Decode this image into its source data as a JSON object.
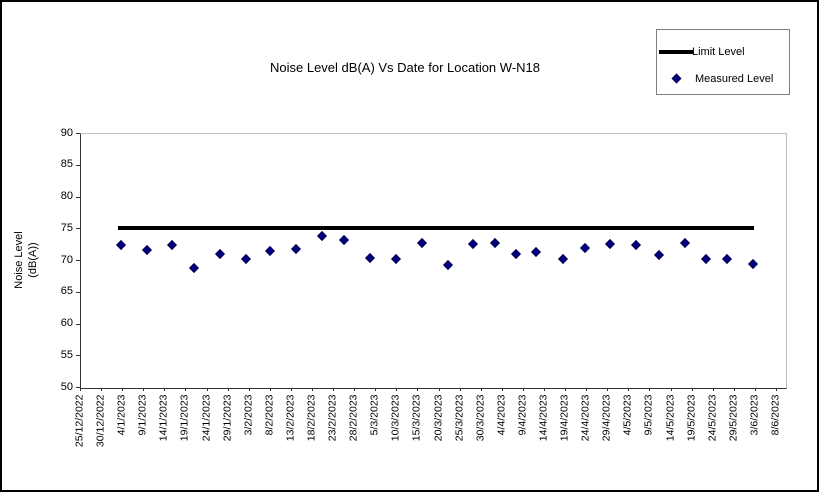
{
  "colors": {
    "background": "#ffffff",
    "canvas_border": "#000000",
    "axis": "#333333",
    "plot_border": "#c0c0c0",
    "limit_line": "#000000",
    "measured_point": "#000080",
    "legend_border": "#808080",
    "text": "#000000"
  },
  "chart_data": {
    "type": "scatter",
    "title": "Noise Level dB(A) Vs Date for Location W-N18",
    "grid": false,
    "y_axis": {
      "label_line1": "Noise Level",
      "label_line2": "(dB(A))",
      "min": 50,
      "max": 90,
      "tick_step": 5,
      "ticks": [
        90,
        85,
        80,
        75,
        70,
        65,
        60,
        55,
        50
      ]
    },
    "x_axis": {
      "tick_labels": [
        "25/12/2022",
        "30/12/2022",
        "4/1/2023",
        "9/1/2023",
        "14/1/2023",
        "19/1/2023",
        "24/1/2023",
        "29/1/2023",
        "3/2/2023",
        "8/2/2023",
        "13/2/2023",
        "18/2/2023",
        "23/2/2023",
        "28/2/2023",
        "5/3/2023",
        "10/3/2023",
        "15/3/2023",
        "20/3/2023",
        "25/3/2023",
        "30/3/2023",
        "4/4/2023",
        "9/4/2023",
        "14/4/2023",
        "19/4/2023",
        "24/4/2023",
        "29/4/2023",
        "4/5/2023",
        "9/5/2023",
        "14/5/2023",
        "19/5/2023",
        "24/5/2023",
        "29/5/2023",
        "3/6/2023",
        "8/6/2023"
      ]
    },
    "legend": {
      "position": "top-right",
      "items": [
        {
          "label": "Limit Level",
          "marker": "line",
          "color": "#000000"
        },
        {
          "label": "Measured Level",
          "marker": "diamond",
          "color": "#000080"
        }
      ]
    },
    "series": [
      {
        "name": "Limit Level",
        "type": "line",
        "value": 75,
        "x_span_frac": [
          0.054,
          0.956
        ]
      },
      {
        "name": "Measured Level",
        "type": "scatter",
        "points": [
          {
            "x_frac": 0.058,
            "value": 72.3
          },
          {
            "x_frac": 0.095,
            "value": 71.5
          },
          {
            "x_frac": 0.131,
            "value": 72.3
          },
          {
            "x_frac": 0.162,
            "value": 68.8
          },
          {
            "x_frac": 0.198,
            "value": 71.0
          },
          {
            "x_frac": 0.236,
            "value": 70.1
          },
          {
            "x_frac": 0.27,
            "value": 71.4
          },
          {
            "x_frac": 0.307,
            "value": 71.7
          },
          {
            "x_frac": 0.343,
            "value": 73.8
          },
          {
            "x_frac": 0.374,
            "value": 73.2
          },
          {
            "x_frac": 0.412,
            "value": 70.3
          },
          {
            "x_frac": 0.448,
            "value": 70.1
          },
          {
            "x_frac": 0.485,
            "value": 72.6
          },
          {
            "x_frac": 0.522,
            "value": 69.2
          },
          {
            "x_frac": 0.558,
            "value": 72.5
          },
          {
            "x_frac": 0.588,
            "value": 72.7
          },
          {
            "x_frac": 0.619,
            "value": 71.0
          },
          {
            "x_frac": 0.647,
            "value": 71.2
          },
          {
            "x_frac": 0.685,
            "value": 70.1
          },
          {
            "x_frac": 0.716,
            "value": 71.9
          },
          {
            "x_frac": 0.752,
            "value": 72.5
          },
          {
            "x_frac": 0.789,
            "value": 72.4
          },
          {
            "x_frac": 0.821,
            "value": 70.8
          },
          {
            "x_frac": 0.858,
            "value": 72.7
          },
          {
            "x_frac": 0.888,
            "value": 70.2
          },
          {
            "x_frac": 0.918,
            "value": 70.1
          },
          {
            "x_frac": 0.954,
            "value": 69.3
          }
        ]
      }
    ]
  }
}
